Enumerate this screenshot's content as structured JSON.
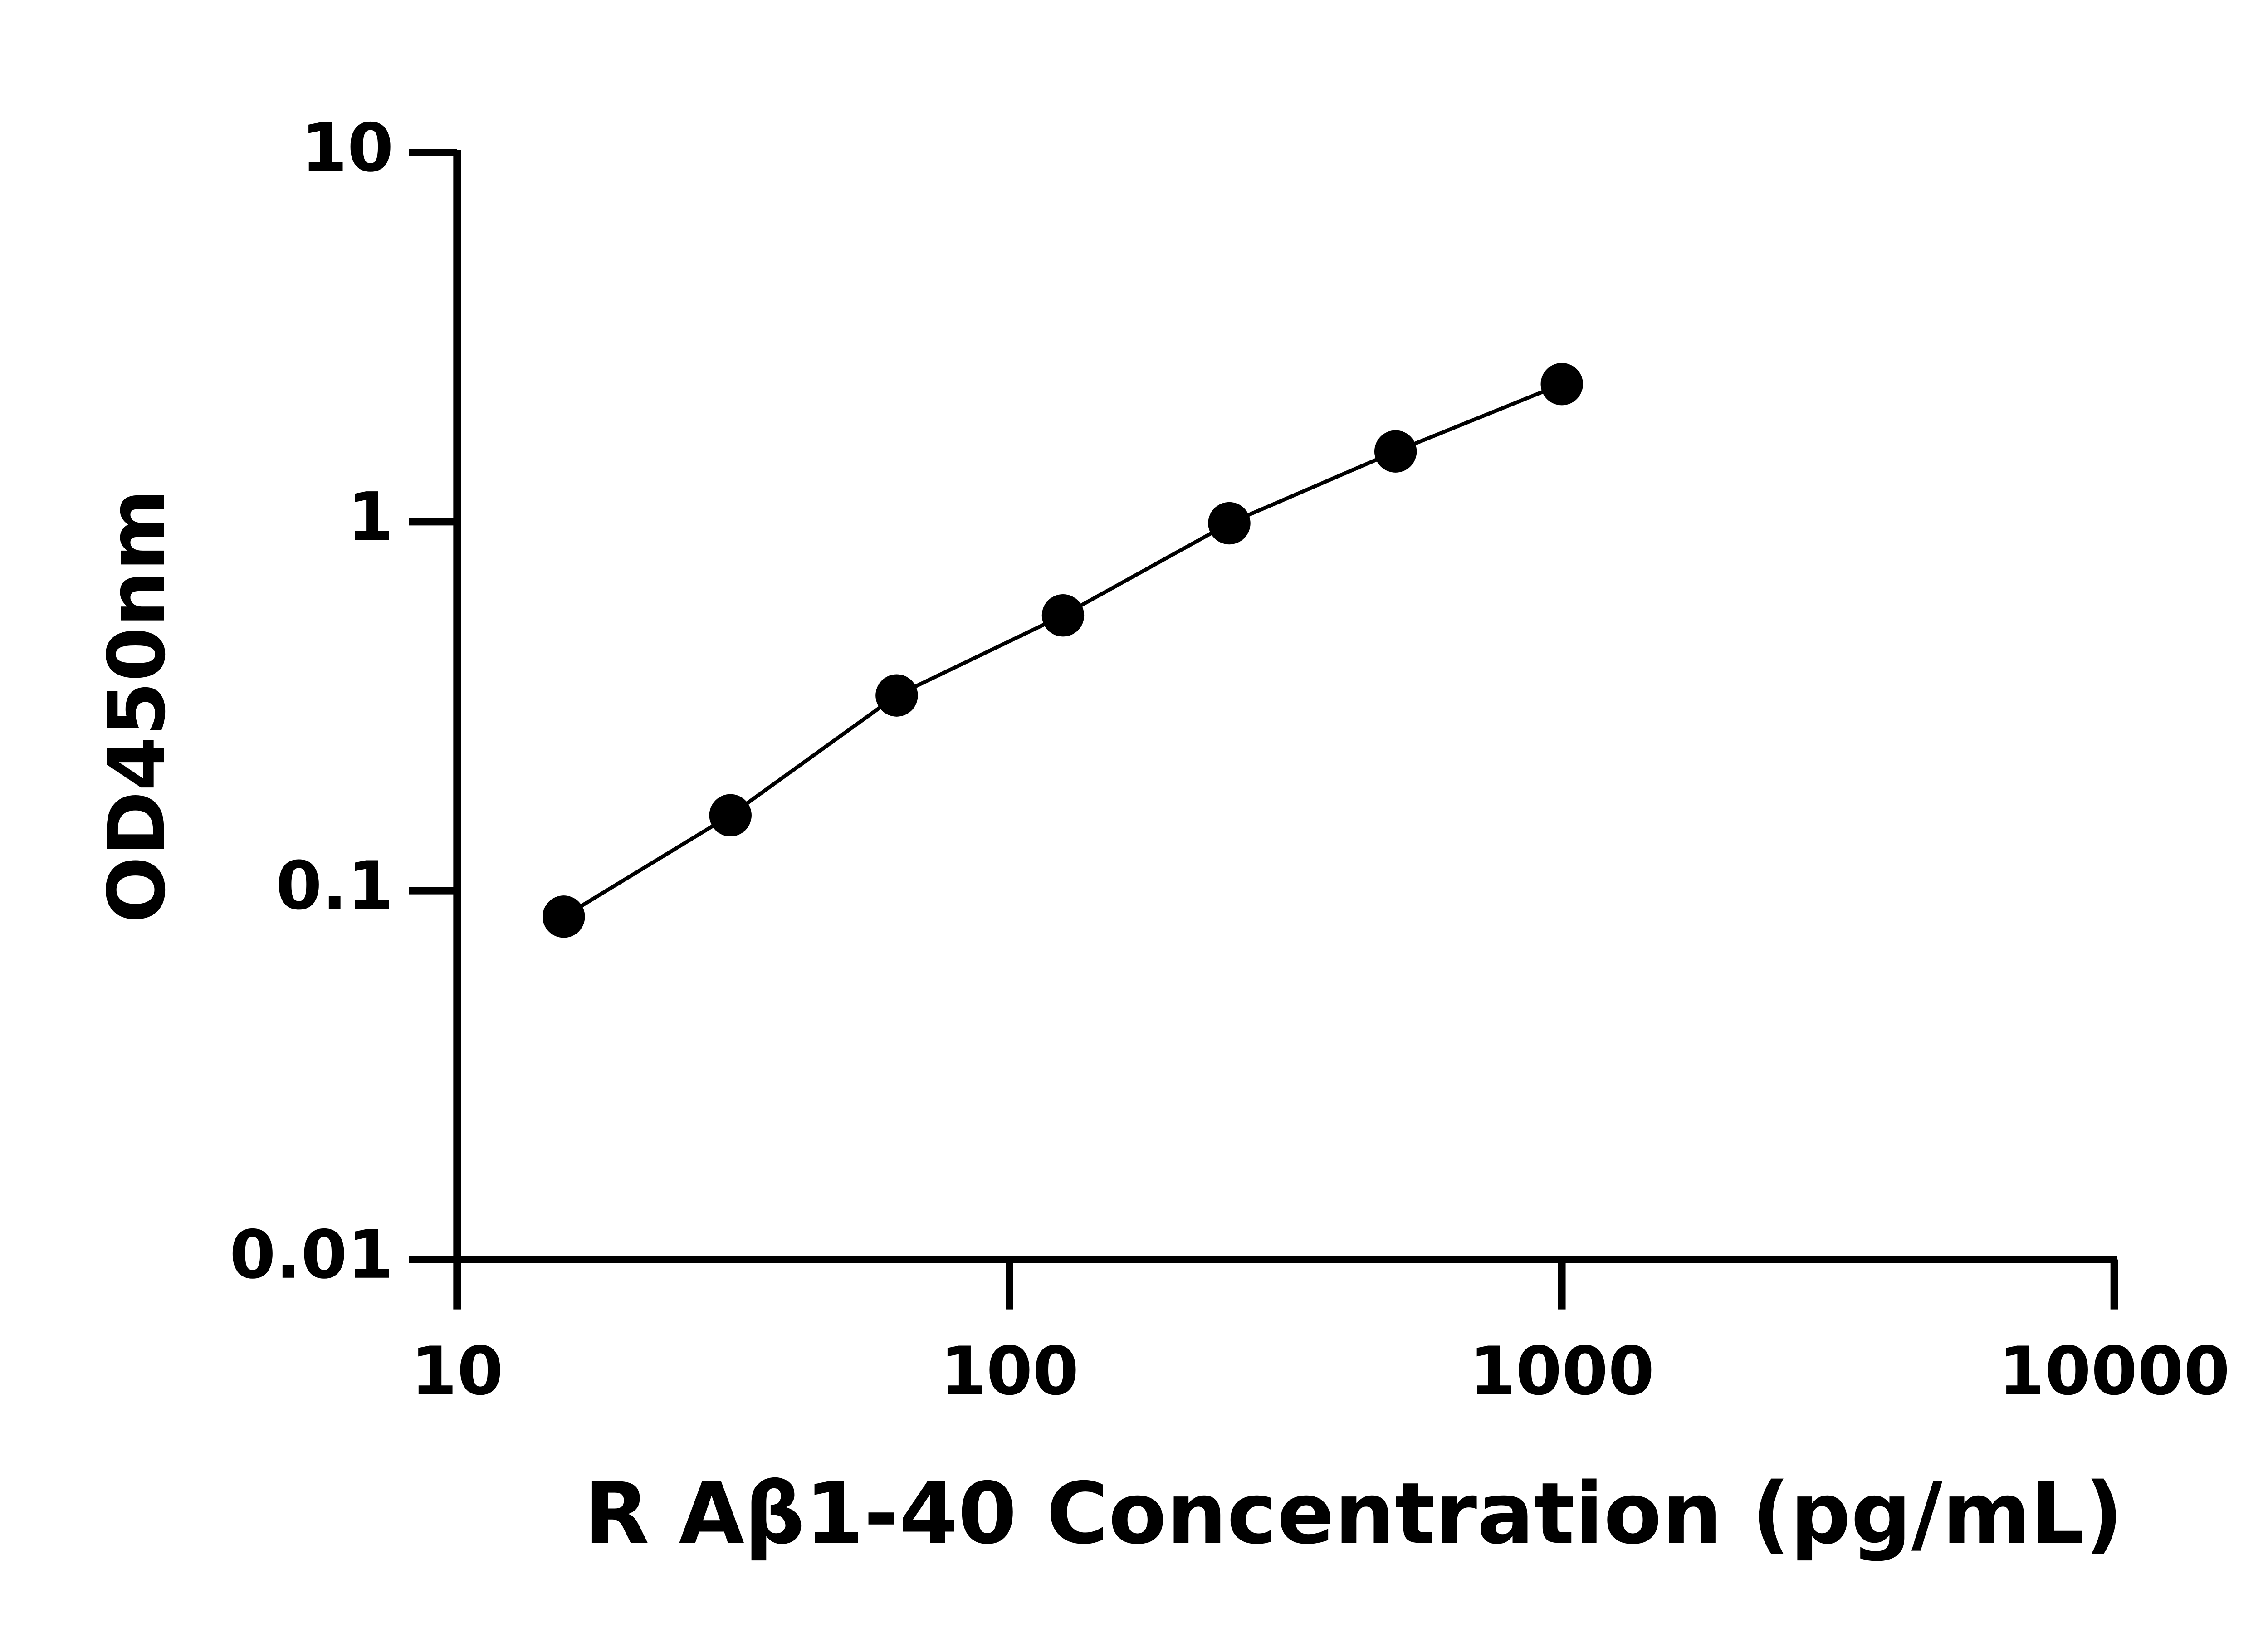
{
  "chart_data": {
    "type": "scatter",
    "x_label": "R Aβ1-40 Concentration (pg/mL)",
    "y_label": "OD450nm",
    "x": [
      15.6,
      31.25,
      62.5,
      125,
      250,
      500,
      1000
    ],
    "values": [
      0.085,
      0.16,
      0.338,
      0.557,
      0.99,
      1.55,
      2.36
    ],
    "color": "#000000",
    "xlim": [
      10,
      10000
    ],
    "xticks": [
      10,
      100,
      1000,
      10000
    ],
    "x_log": true,
    "ylim": [
      0.01,
      10
    ],
    "yticks": [
      0.01,
      0.1,
      1,
      10
    ],
    "y_log": true,
    "connect": true
  }
}
